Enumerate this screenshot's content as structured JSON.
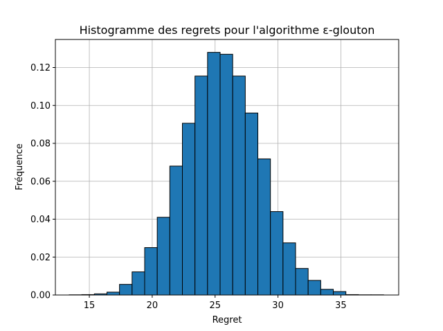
{
  "chart_data": {
    "type": "bar",
    "subtype": "histogram",
    "title": "Histogramme des regrets pour l'algorithme ε-glouton",
    "xlabel": "Regret",
    "ylabel": "Fréquence",
    "xlim": [
      12.3,
      39.6
    ],
    "ylim": [
      0,
      0.1348
    ],
    "xticks": [
      15,
      20,
      25,
      30,
      35
    ],
    "yticks": [
      0.0,
      0.02,
      0.04,
      0.06,
      0.08,
      0.1,
      0.12
    ],
    "ytick_decimals": 2,
    "grid": true,
    "bin_width": 1,
    "bin_start": 13.4,
    "values": [
      0.0001,
      0.0002,
      0.0006,
      0.0015,
      0.0056,
      0.0122,
      0.025,
      0.041,
      0.068,
      0.0906,
      0.1155,
      0.128,
      0.127,
      0.1155,
      0.096,
      0.0718,
      0.044,
      0.0275,
      0.014,
      0.0077,
      0.003,
      0.0018,
      0.0002,
      0.0001,
      0.0001
    ],
    "bar_color": "#1f77b4",
    "edge_color": "#000000",
    "grid_color": "#b0b0b0"
  }
}
